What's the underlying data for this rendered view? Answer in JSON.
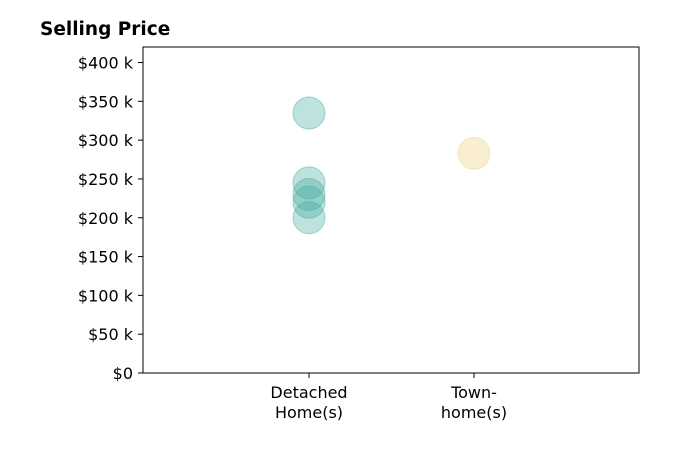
{
  "chart_data": {
    "type": "scatter",
    "title": "Selling Price",
    "xlabel": "",
    "ylabel": "",
    "categories": [
      [
        "Detached",
        "Home(s)"
      ],
      [
        "Town-",
        "home(s)"
      ]
    ],
    "ylim": [
      0,
      420000
    ],
    "yticks": [
      {
        "value": 0,
        "label": "$0"
      },
      {
        "value": 50000,
        "label": "$50 k"
      },
      {
        "value": 100000,
        "label": "$100 k"
      },
      {
        "value": 150000,
        "label": "$150 k"
      },
      {
        "value": 200000,
        "label": "$200 k"
      },
      {
        "value": 250000,
        "label": "$250 k"
      },
      {
        "value": 300000,
        "label": "$300 k"
      },
      {
        "value": 350000,
        "label": "$350 k"
      },
      {
        "value": 400000,
        "label": "$400 k"
      }
    ],
    "series": [
      {
        "category": 0,
        "color": "#3aa899",
        "opacity": 0.33,
        "values": [
          335000,
          245000,
          230000,
          220000,
          200000
        ]
      },
      {
        "category": 1,
        "color": "#f2d79b",
        "opacity": 0.45,
        "values": [
          283000
        ]
      }
    ],
    "grid": false,
    "legend": "none"
  }
}
